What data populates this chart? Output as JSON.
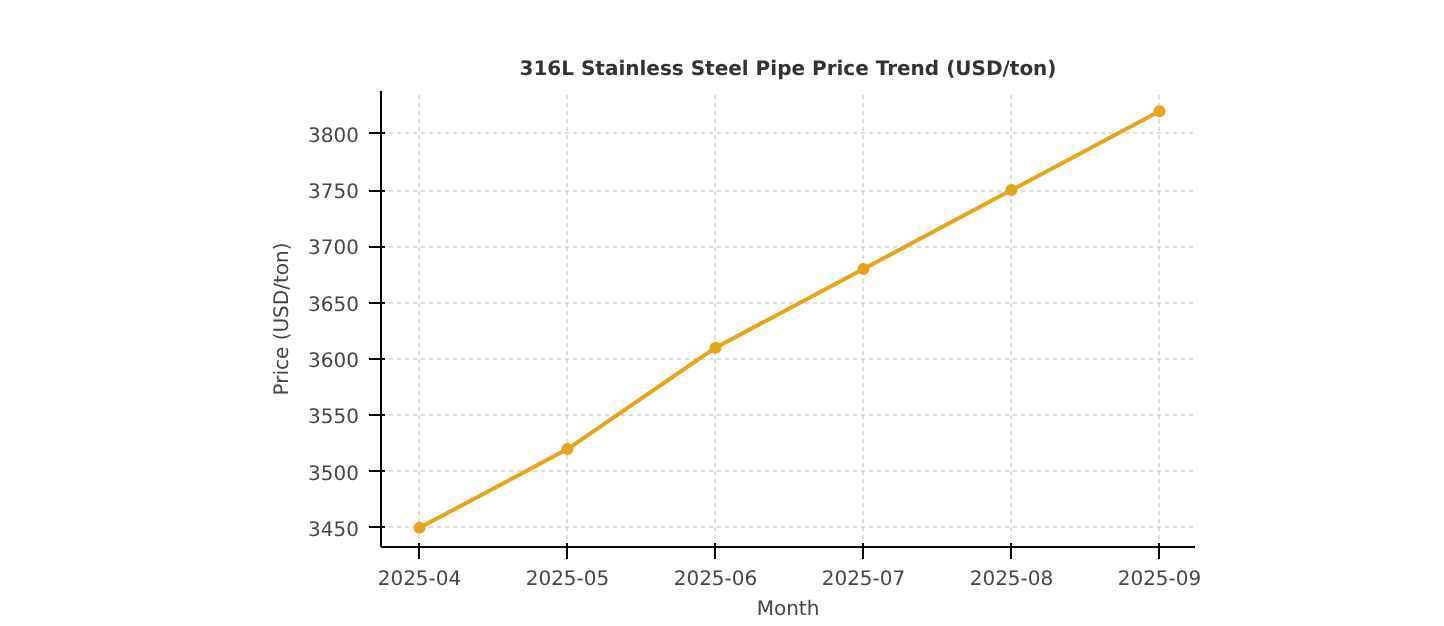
{
  "chart_data": {
    "type": "line",
    "title": "316L Stainless Steel Pipe Price Trend (USD/ton)",
    "xlabel": "Month",
    "ylabel": "Price (USD/ton)",
    "categories": [
      "2025-04",
      "2025-05",
      "2025-06",
      "2025-07",
      "2025-08",
      "2025-09"
    ],
    "series": [
      {
        "color": "#e8a317",
        "values": [
          3450,
          3520,
          3610,
          3680,
          3750,
          3820
        ]
      }
    ],
    "ylim": [
      3433,
      3838
    ],
    "yticks": [
      3450,
      3500,
      3550,
      3600,
      3650,
      3700,
      3750,
      3800
    ],
    "grid": true,
    "marker": "circle",
    "line_style": "solid"
  }
}
